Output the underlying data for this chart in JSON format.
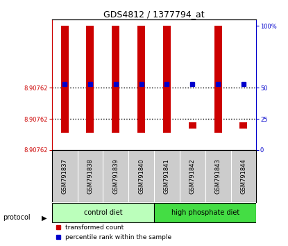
{
  "title": "GDS4812 / 1377794_at",
  "samples": [
    "GSM791837",
    "GSM791838",
    "GSM791839",
    "GSM791840",
    "GSM791841",
    "GSM791842",
    "GSM791843",
    "GSM791844"
  ],
  "left_ytick_labels": [
    "8.90762",
    "8.90762",
    "8.90762"
  ],
  "left_ytick_positions": [
    0.0,
    0.25,
    0.5
  ],
  "right_ytick_labels": [
    "0",
    "25",
    "50",
    "100%"
  ],
  "right_ytick_positions": [
    0.0,
    0.25,
    0.5,
    1.0
  ],
  "ylim": [
    0.0,
    1.05
  ],
  "hline_positions": [
    0.25,
    0.5
  ],
  "bar_tops": [
    1.0,
    1.0,
    1.0,
    1.0,
    1.0,
    0.22,
    1.0,
    0.22
  ],
  "bar_bottoms": [
    0.14,
    0.14,
    0.14,
    0.14,
    0.14,
    0.17,
    0.14,
    0.17
  ],
  "bar_color": "#cc0000",
  "bar_width": 0.3,
  "blue_dot_y": [
    0.53,
    0.53,
    0.53,
    0.53,
    0.53,
    0.53,
    0.53,
    0.53
  ],
  "blue_dot_color": "#0000cc",
  "blue_dot_size": 4,
  "protocol_groups": [
    {
      "label": "control diet",
      "start": 0,
      "end": 3,
      "color": "#bbffbb"
    },
    {
      "label": "high phosphate diet",
      "start": 4,
      "end": 7,
      "color": "#44dd44"
    }
  ],
  "legend_items": [
    {
      "label": "transformed count",
      "color": "#cc0000"
    },
    {
      "label": "percentile rank within the sample",
      "color": "#0000cc"
    }
  ],
  "protocol_label": "protocol",
  "bg_color": "#ffffff",
  "plot_bg_color": "#ffffff",
  "left_axis_color": "#cc0000",
  "right_axis_color": "#0000cc",
  "sample_bg_color": "#cccccc",
  "grid_color": "#cccccc"
}
